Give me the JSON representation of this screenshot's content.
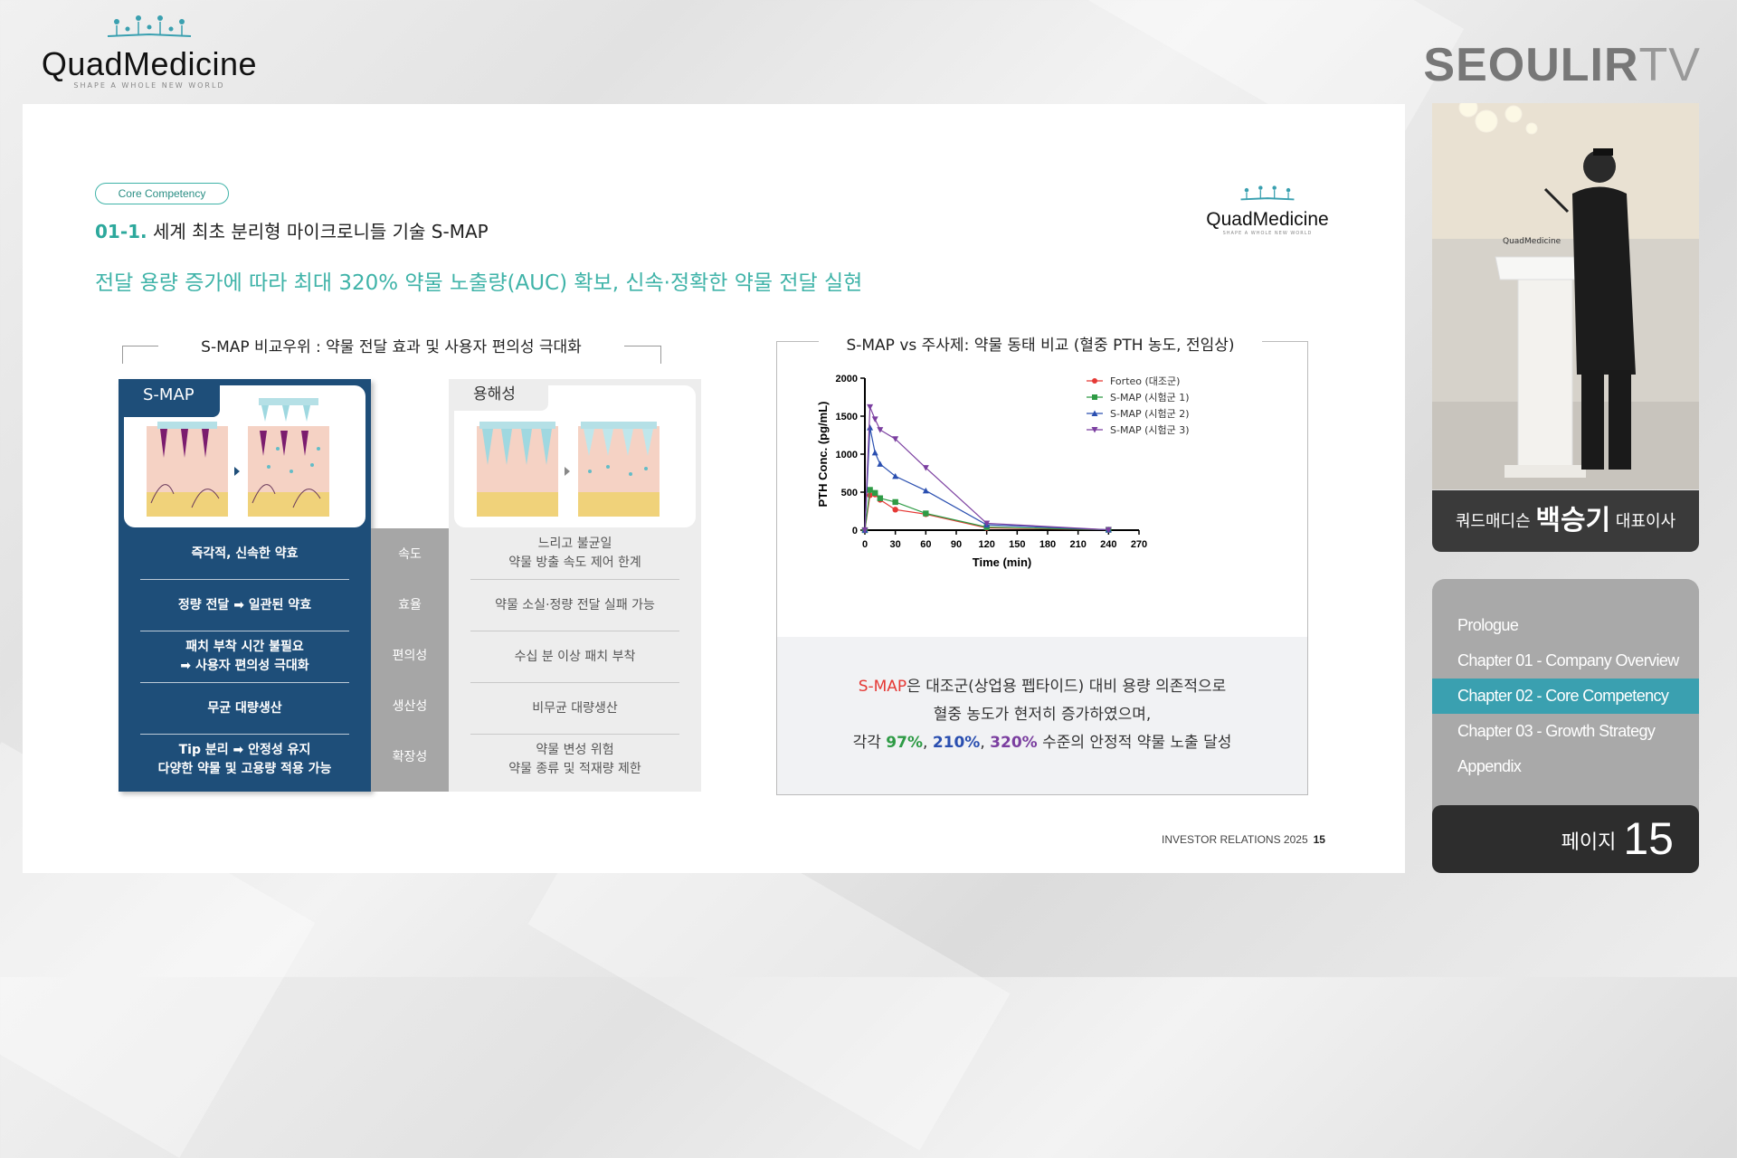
{
  "brand": {
    "name": "QuadMedicine",
    "tagline": "SHAPE A WHOLE NEW WORLD"
  },
  "broadcaster": {
    "bold": "SEOULIR",
    "light": "TV"
  },
  "slide": {
    "pill": "Core Competency",
    "heading_num": "01-1.",
    "heading": "세계 최초 분리형 마이크로니들 기술 S-MAP",
    "subheading": "전달 용량 증가에 따라 최대 320% 약물 노출량(AUC) 확보, 신속·정확한 약물 전달 실현",
    "left_title": "S-MAP 비교우위 : 약물 전달 효과 및 사용자 편의성 극대화",
    "right_title": "S-MAP vs 주사제: 약물 동태 비교 (혈중 PTH 농도, 전임상)",
    "smap_tab": "S-MAP",
    "sol_tab": "용해성",
    "rows": [
      {
        "smap": [
          "즉각적, 신속한 약효"
        ],
        "cat": "속도",
        "sol": [
          "느리고 불균일",
          "약물 방출 속도 제어 한계"
        ]
      },
      {
        "smap": [
          "정량 전달 ➡ 일관된 약효"
        ],
        "cat": "효율",
        "sol": [
          "약물 소실·정량 전달 실패 가능"
        ]
      },
      {
        "smap": [
          "패치 부착 시간 불필요",
          "➡ 사용자 편의성 극대화"
        ],
        "cat": "편의성",
        "sol": [
          "수십 분 이상 패치 부착"
        ]
      },
      {
        "smap": [
          "무균 대량생산"
        ],
        "cat": "생산성",
        "sol": [
          "비무균 대량생산"
        ]
      },
      {
        "smap": [
          "Tip 분리 ➡ 안정성 유지",
          "다양한 약물 및 고용량 적용 가능"
        ],
        "cat": "확장성",
        "sol": [
          "약물 변성 위험",
          "약물 종류 및 적재량 제한"
        ]
      }
    ],
    "note_line1_red": "S-MAP",
    "note_line1_rest": "은 대조군(상업용 펩타이드) 대비 용량 의존적으로",
    "note_line2": "혈중 농도가 현저히 증가하였으며,",
    "note_line3_pre": "각각 ",
    "note_p1": "97%",
    "note_sep": ", ",
    "note_p2": "210%",
    "note_p3": "320%",
    "note_line3_post": " 수준의 안정적 약물 노출 달성",
    "footer_text": "INVESTOR RELATIONS 2025",
    "footer_page": "15"
  },
  "chart_data": {
    "type": "line",
    "xlabel": "Time (min)",
    "ylabel": "PTH Conc. (pg/mL)",
    "xlim": [
      0,
      270
    ],
    "ylim": [
      0,
      2000
    ],
    "xticks": [
      0,
      30,
      60,
      90,
      120,
      150,
      180,
      210,
      240,
      270
    ],
    "yticks": [
      0,
      500,
      1000,
      1500,
      2000
    ],
    "legend_position": "top-right",
    "series": [
      {
        "name": "Forteo (대조군)",
        "color": "#e53935",
        "marker": "circle",
        "x": [
          0,
          5,
          10,
          15,
          30,
          60,
          120,
          240
        ],
        "y": [
          0,
          460,
          470,
          400,
          270,
          210,
          30,
          5
        ]
      },
      {
        "name": "S-MAP (시험군 1)",
        "color": "#2e9b45",
        "marker": "square",
        "x": [
          0,
          5,
          10,
          15,
          30,
          60,
          120,
          240
        ],
        "y": [
          0,
          530,
          490,
          420,
          370,
          220,
          40,
          5
        ]
      },
      {
        "name": "S-MAP (시험군 2)",
        "color": "#2a4fb0",
        "marker": "triangle-up",
        "x": [
          0,
          5,
          10,
          15,
          30,
          60,
          120,
          240
        ],
        "y": [
          0,
          1350,
          1020,
          870,
          710,
          520,
          70,
          5
        ]
      },
      {
        "name": "S-MAP (시험군 3)",
        "color": "#7b3fa0",
        "marker": "triangle-down",
        "x": [
          0,
          5,
          10,
          15,
          30,
          60,
          120,
          240
        ],
        "y": [
          0,
          1620,
          1460,
          1320,
          1200,
          820,
          90,
          5
        ]
      }
    ]
  },
  "speaker": {
    "pre": "쿼드매디슨 ",
    "name": "백승기",
    "title": " 대표이사"
  },
  "chapters": [
    "Prologue",
    "Chapter 01 - Company Overview",
    "Chapter 02 - Core Competency",
    "Chapter 03 - Growth Strategy",
    "Appendix"
  ],
  "active_chapter": 2,
  "page": {
    "label": "페이지",
    "number": "15"
  },
  "colors": {
    "accent": "#3fb3a8",
    "navy": "#1e4e79",
    "chapter_active": "#3aa0b0"
  }
}
